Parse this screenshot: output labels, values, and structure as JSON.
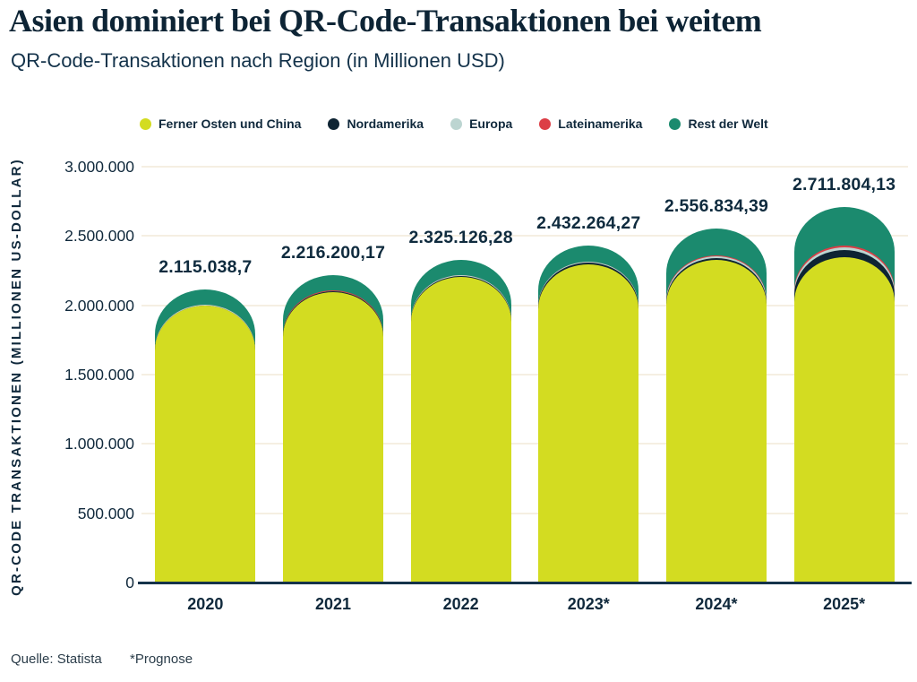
{
  "header": {
    "title": "Asien dominiert bei QR-Code-Transaktionen bei weitem",
    "subtitle": "QR-Code-Transaktionen nach Region (in Millionen USD)"
  },
  "y_axis": {
    "title": "QR-CODE TRANSAKTIONEN (MILLIONEN US-DOLLAR)",
    "ticks": [
      {
        "value": 0,
        "label": "0"
      },
      {
        "value": 500000,
        "label": "500.000"
      },
      {
        "value": 1000000,
        "label": "1.000.000"
      },
      {
        "value": 1500000,
        "label": "1.500.000"
      },
      {
        "value": 2000000,
        "label": "2.000.000"
      },
      {
        "value": 2500000,
        "label": "2.500.000"
      },
      {
        "value": 3000000,
        "label": "3.000.000"
      }
    ]
  },
  "footer": {
    "source": "Quelle: Statista",
    "note": "*Prognose"
  },
  "colors": {
    "text_dark": "#0f2b3e",
    "gridline": "#f5efe2",
    "baseline": "#15334a"
  },
  "chart_data": {
    "type": "bar",
    "stacked": true,
    "rounded_tops": true,
    "title": "Asien dominiert bei QR-Code-Transaktionen bei weitem",
    "subtitle": "QR-Code-Transaktionen nach Region (in Millionen USD)",
    "xlabel": "",
    "ylabel": "QR-CODE TRANSAKTIONEN (MILLIONEN US-DOLLAR)",
    "ylim": [
      0,
      3000000
    ],
    "ytick_interval": 500000,
    "ytick_labels": [
      "0",
      "500.000",
      "1.000.000",
      "1.500.000",
      "2.000.000",
      "2.500.000",
      "3.000.000"
    ],
    "grid": true,
    "legend_position": "top",
    "categories": [
      "2020",
      "2021",
      "2022",
      "2023*",
      "2024*",
      "2025*"
    ],
    "totals": [
      2115038.7,
      2216200.17,
      2325126.28,
      2432264.27,
      2556834.39,
      2711804.13
    ],
    "total_labels": [
      "2.115.038,7",
      "2.216.200,17",
      "2.325.126,28",
      "2.432.264,27",
      "2.556.834,39",
      "2.711.804,13"
    ],
    "series": [
      {
        "name": "Ferner Osten und China",
        "color": "#d3dc21",
        "values": [
          1995000,
          2095000,
          2205000,
          2295000,
          2325000,
          2345000
        ]
      },
      {
        "name": "Nordamerika",
        "color": "#0e2433",
        "values": [
          5000,
          6000,
          8000,
          12000,
          14000,
          55000
        ]
      },
      {
        "name": "Europa",
        "color": "#bcd5d1",
        "values": [
          3000,
          3500,
          4500,
          5000,
          14000,
          16000
        ]
      },
      {
        "name": "Lateinamerika",
        "color": "#dc3e46",
        "values": [
          2000,
          2500,
          3000,
          3500,
          5000,
          18000
        ]
      },
      {
        "name": "Rest der Welt",
        "color": "#1b8a6e",
        "values": [
          110038.7,
          109200.17,
          104626.28,
          116764.27,
          198834.39,
          277804.13
        ]
      }
    ],
    "values_note": "Only stacked totals are labeled on the chart; per-region segment values are estimated from bar pixel heights.",
    "source": "Quelle: Statista",
    "footnote": "*Prognose"
  }
}
